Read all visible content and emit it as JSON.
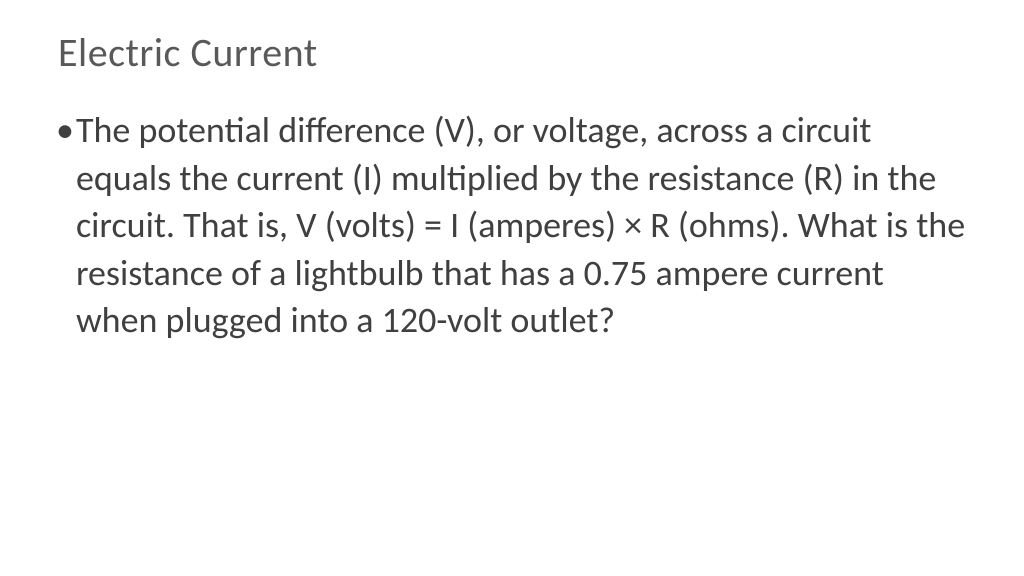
{
  "slide": {
    "title": "Electric Current",
    "bullet_marker": "•",
    "body_text": "The potential difference (V), or voltage, across a circuit equals the current (I) multiplied by the resistance (R) in the circuit. That is, V (volts) = I (amperes) × R (ohms). What is the resistance of a lightbulb that has a 0.75 ampere current when plugged into a 120-volt outlet?"
  },
  "style": {
    "background_color": "#ffffff",
    "title_color": "#595959",
    "title_fontsize": 40,
    "title_fontweight": 300,
    "body_color": "#404040",
    "body_fontsize": 36,
    "body_lineheight": 1.32,
    "font_family": "Calibri"
  }
}
